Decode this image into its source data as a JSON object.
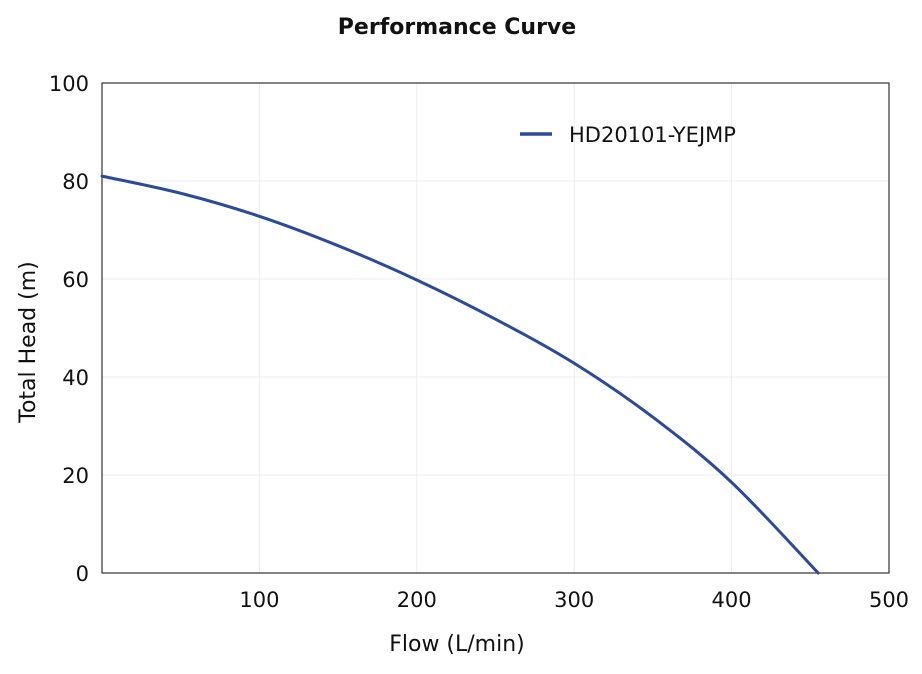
{
  "chart_data": {
    "type": "line",
    "title": "Performance Curve",
    "xlabel": "Flow (L/min)",
    "ylabel": "Total Head (m)",
    "xlim": [
      0,
      500
    ],
    "ylim": [
      0,
      100
    ],
    "xticks": [
      100,
      200,
      300,
      400,
      500
    ],
    "yticks": [
      0,
      20,
      40,
      60,
      80,
      100
    ],
    "grid": true,
    "legend_position": "top-right",
    "series": [
      {
        "name": "HD20101-YEJMP",
        "color": "#2b4a9b",
        "x": [
          0,
          50,
          100,
          150,
          200,
          250,
          300,
          350,
          400,
          455
        ],
        "y": [
          81,
          77.5,
          72.8,
          66.8,
          59.8,
          51.8,
          42.8,
          31.8,
          18.5,
          0
        ]
      }
    ]
  }
}
